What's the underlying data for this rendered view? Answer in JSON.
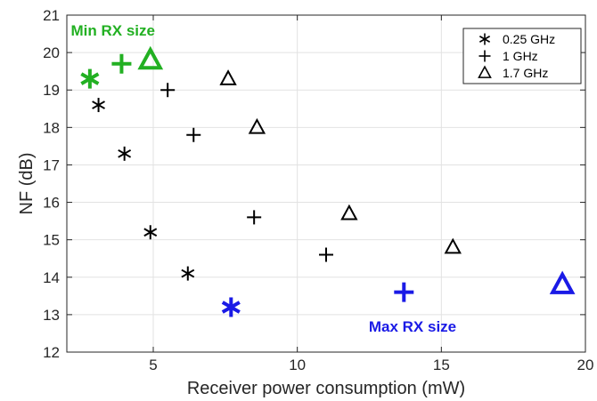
{
  "chart_data": {
    "type": "scatter",
    "title": "",
    "xlabel": "Receiver power consumption (mW)",
    "ylabel": "NF (dB)",
    "xlim": [
      2,
      20
    ],
    "ylim": [
      12,
      21
    ],
    "xticks": [
      5,
      10,
      15,
      20
    ],
    "yticks": [
      12,
      13,
      14,
      15,
      16,
      17,
      18,
      19,
      20,
      21
    ],
    "grid": true,
    "legend_position": "top-right",
    "series": [
      {
        "name": "0.25 GHz",
        "marker": "asterisk",
        "color": "#000000",
        "points": [
          [
            3.1,
            18.6
          ],
          [
            4.0,
            17.3
          ],
          [
            4.9,
            15.2
          ],
          [
            6.2,
            14.1
          ]
        ],
        "highlight_points": [
          {
            "x": 2.8,
            "y": 19.3,
            "color": "#22b022"
          },
          {
            "x": 7.7,
            "y": 13.2,
            "color": "#1a1ae6"
          }
        ]
      },
      {
        "name": "1 GHz",
        "marker": "plus",
        "color": "#000000",
        "points": [
          [
            5.5,
            19.0
          ],
          [
            6.4,
            17.8
          ],
          [
            8.5,
            15.6
          ],
          [
            11.0,
            14.6
          ]
        ],
        "highlight_points": [
          {
            "x": 3.9,
            "y": 19.7,
            "color": "#22b022"
          },
          {
            "x": 13.7,
            "y": 13.6,
            "color": "#1a1ae6"
          }
        ]
      },
      {
        "name": "1.7 GHz",
        "marker": "triangle",
        "color": "#000000",
        "points": [
          [
            7.6,
            19.3
          ],
          [
            8.6,
            18.0
          ],
          [
            11.8,
            15.7
          ],
          [
            15.4,
            14.8
          ]
        ],
        "highlight_points": [
          {
            "x": 4.9,
            "y": 19.8,
            "color": "#22b022"
          },
          {
            "x": 19.2,
            "y": 13.8,
            "color": "#1a1ae6"
          }
        ]
      }
    ],
    "annotations": [
      {
        "text": "Min RX size",
        "color": "#22b022",
        "x": 3.6,
        "y": 20.45
      },
      {
        "text": "Max RX size",
        "color": "#1a1ae6",
        "x": 14.0,
        "y": 12.55
      }
    ]
  }
}
